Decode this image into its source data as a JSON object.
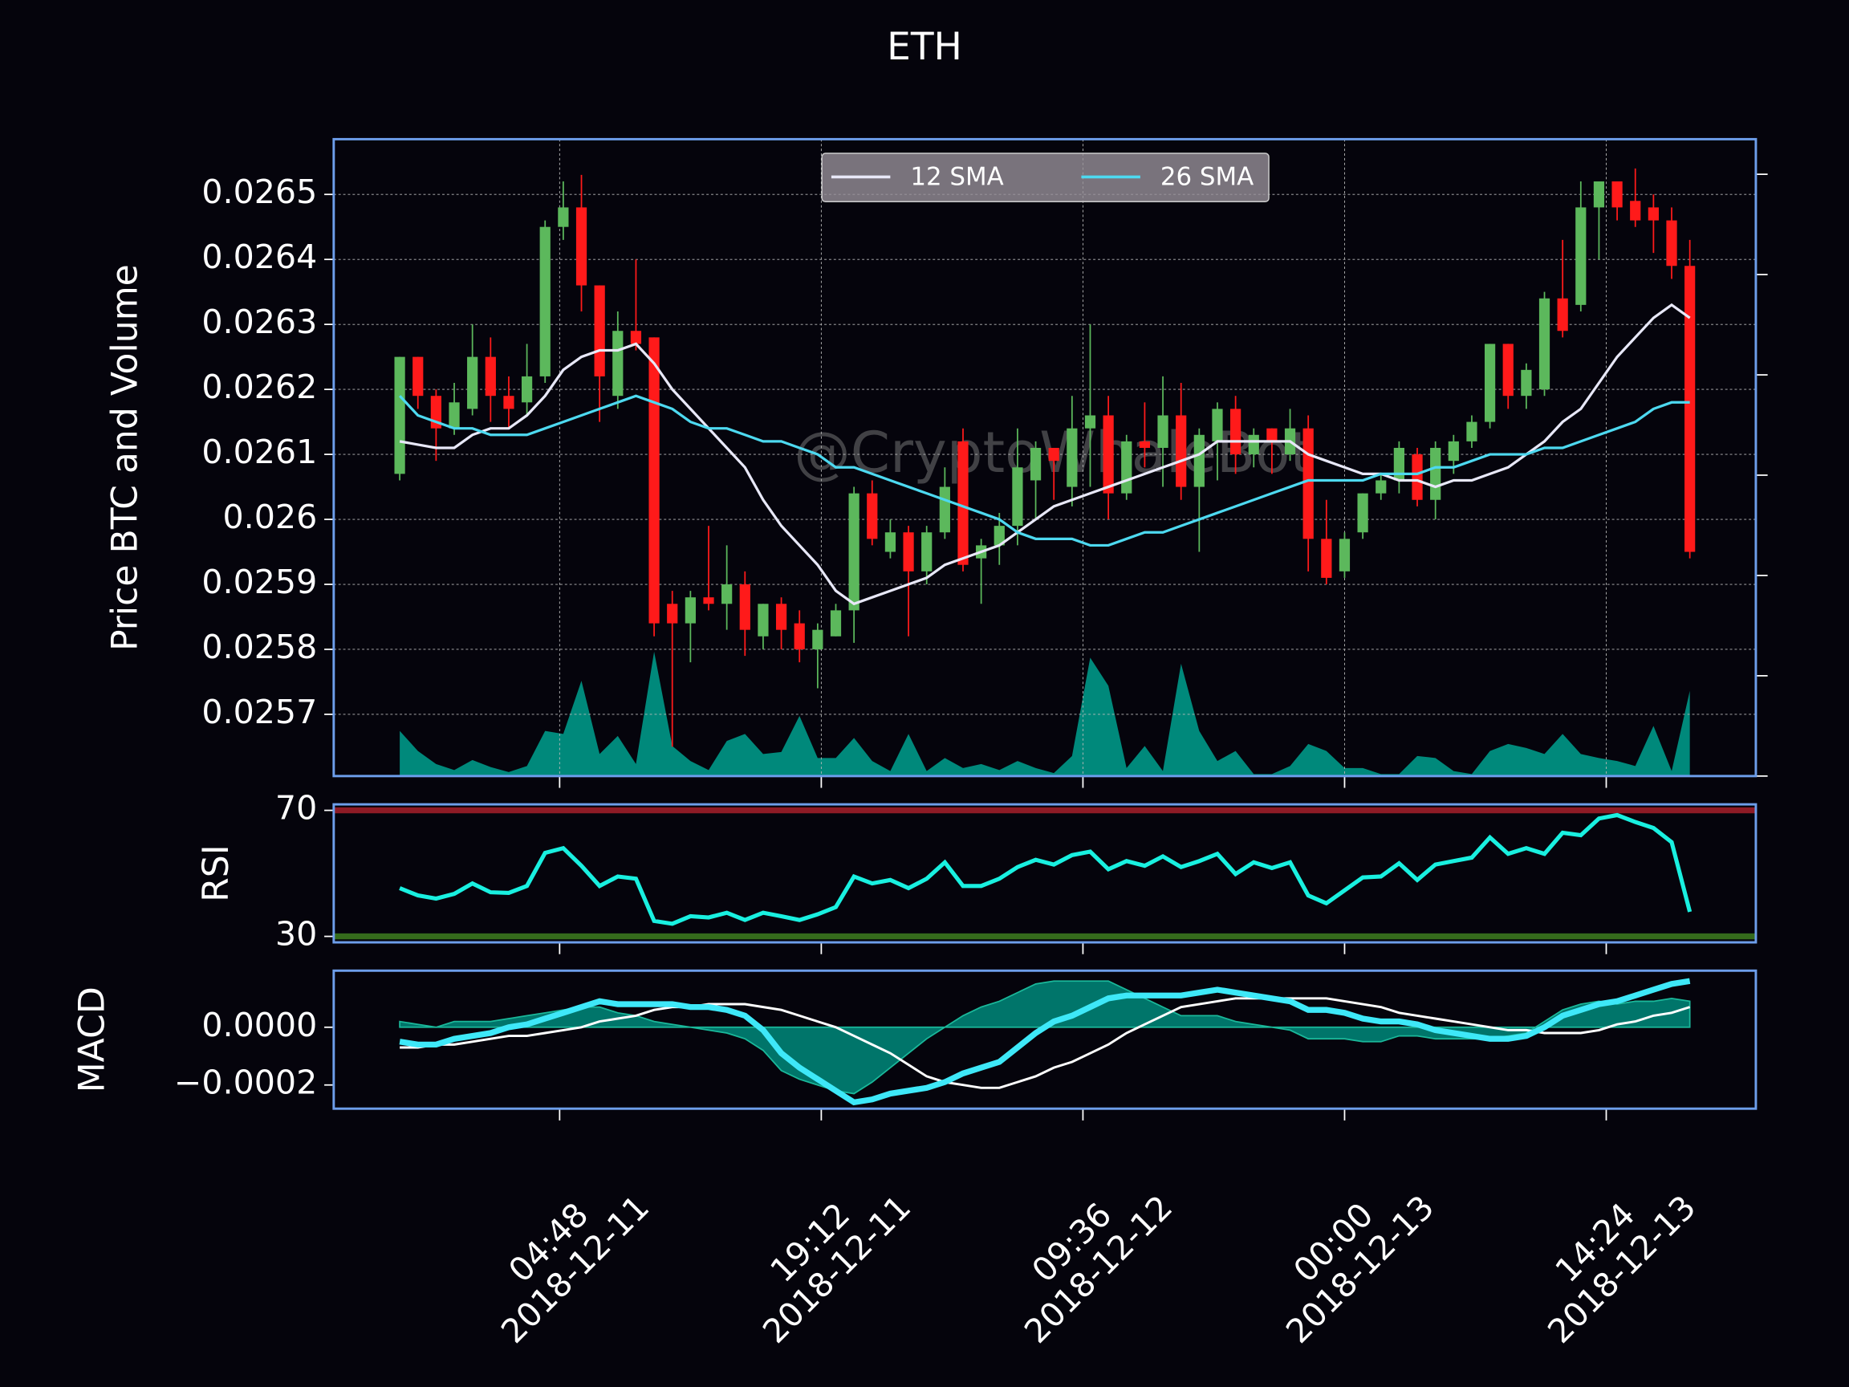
{
  "chart_data": [
    {
      "type": "candlestick",
      "title": "ETH",
      "ylabel": "Price BTC and Volume",
      "watermark": "@CryptoWhaleBot",
      "x": [
        "2018-12-10 20:00",
        "2018-12-10 21:00",
        "2018-12-10 22:00",
        "2018-12-10 23:00",
        "2018-12-11 00:00",
        "2018-12-11 01:00",
        "2018-12-11 02:00",
        "2018-12-11 03:00",
        "2018-12-11 04:00",
        "2018-12-11 05:00",
        "2018-12-11 06:00",
        "2018-12-11 07:00",
        "2018-12-11 08:00",
        "2018-12-11 09:00",
        "2018-12-11 10:00",
        "2018-12-11 11:00",
        "2018-12-11 12:00",
        "2018-12-11 13:00",
        "2018-12-11 14:00",
        "2018-12-11 15:00",
        "2018-12-11 16:00",
        "2018-12-11 17:00",
        "2018-12-11 18:00",
        "2018-12-11 19:00",
        "2018-12-11 20:00",
        "2018-12-11 21:00",
        "2018-12-11 22:00",
        "2018-12-11 23:00",
        "2018-12-12 00:00",
        "2018-12-12 01:00",
        "2018-12-12 02:00",
        "2018-12-12 03:00",
        "2018-12-12 04:00",
        "2018-12-12 05:00",
        "2018-12-12 06:00",
        "2018-12-12 07:00",
        "2018-12-12 08:00",
        "2018-12-12 09:00",
        "2018-12-12 10:00",
        "2018-12-12 11:00",
        "2018-12-12 12:00",
        "2018-12-12 13:00",
        "2018-12-12 14:00",
        "2018-12-12 15:00",
        "2018-12-12 16:00",
        "2018-12-12 17:00",
        "2018-12-12 18:00",
        "2018-12-12 19:00",
        "2018-12-12 20:00",
        "2018-12-12 21:00",
        "2018-12-12 22:00",
        "2018-12-12 23:00",
        "2018-12-13 00:00",
        "2018-12-13 01:00",
        "2018-12-13 02:00",
        "2018-12-13 03:00",
        "2018-12-13 04:00",
        "2018-12-13 05:00",
        "2018-12-13 06:00",
        "2018-12-13 07:00",
        "2018-12-13 08:00",
        "2018-12-13 09:00",
        "2018-12-13 10:00",
        "2018-12-13 11:00",
        "2018-12-13 12:00",
        "2018-12-13 13:00",
        "2018-12-13 14:00",
        "2018-12-13 15:00",
        "2018-12-13 16:00",
        "2018-12-13 17:00",
        "2018-12-13 18:00",
        "2018-12-13 19:00"
      ],
      "open": [
        0.02607,
        0.02625,
        0.02619,
        0.02614,
        0.02617,
        0.02625,
        0.02619,
        0.02618,
        0.02622,
        0.02645,
        0.02648,
        0.02636,
        0.02619,
        0.02629,
        0.02628,
        0.02587,
        0.02584,
        0.02588,
        0.02587,
        0.0259,
        0.02582,
        0.02587,
        0.02584,
        0.0258,
        0.02582,
        0.02586,
        0.02604,
        0.02595,
        0.02598,
        0.02592,
        0.02598,
        0.02612,
        0.02594,
        0.02596,
        0.02599,
        0.02606,
        0.02611,
        0.02605,
        0.02614,
        0.02616,
        0.02604,
        0.02612,
        0.02611,
        0.02616,
        0.02605,
        0.02612,
        0.02617,
        0.0261,
        0.02614,
        0.0261,
        0.02614,
        0.02597,
        0.02592,
        0.02598,
        0.02604,
        0.02606,
        0.0261,
        0.02603,
        0.02609,
        0.02612,
        0.02615,
        0.02627,
        0.02619,
        0.0262,
        0.02634,
        0.02633,
        0.02648,
        0.02652,
        0.02649,
        0.02648,
        0.02646,
        0.02639
      ],
      "high": [
        0.02625,
        0.02625,
        0.0262,
        0.02621,
        0.0263,
        0.02628,
        0.02622,
        0.02627,
        0.02646,
        0.02652,
        0.02653,
        0.02636,
        0.02632,
        0.0264,
        0.02628,
        0.02589,
        0.02589,
        0.02599,
        0.02596,
        0.02592,
        0.02587,
        0.02588,
        0.02586,
        0.02584,
        0.02587,
        0.02605,
        0.02606,
        0.026,
        0.02599,
        0.02599,
        0.02608,
        0.02614,
        0.02597,
        0.02601,
        0.02614,
        0.02612,
        0.02611,
        0.02619,
        0.0263,
        0.02619,
        0.02613,
        0.02618,
        0.02622,
        0.02621,
        0.02614,
        0.02618,
        0.02619,
        0.02614,
        0.02614,
        0.02617,
        0.02616,
        0.02603,
        0.02598,
        0.02604,
        0.02607,
        0.02612,
        0.02611,
        0.02612,
        0.02613,
        0.02616,
        0.02627,
        0.02627,
        0.02624,
        0.02635,
        0.02643,
        0.02652,
        0.02652,
        0.02652,
        0.02654,
        0.0265,
        0.02648,
        0.02643
      ],
      "low": [
        0.02606,
        0.02617,
        0.02609,
        0.02613,
        0.02616,
        0.02615,
        0.02614,
        0.02616,
        0.02621,
        0.02643,
        0.02632,
        0.02615,
        0.02617,
        0.02626,
        0.02582,
        0.02565,
        0.02578,
        0.02586,
        0.02583,
        0.02579,
        0.0258,
        0.0258,
        0.02578,
        0.02574,
        0.02582,
        0.02581,
        0.02596,
        0.02594,
        0.02582,
        0.0259,
        0.02597,
        0.02592,
        0.02587,
        0.02593,
        0.02596,
        0.026,
        0.02603,
        0.02602,
        0.02605,
        0.026,
        0.02603,
        0.02608,
        0.02605,
        0.02603,
        0.02595,
        0.02606,
        0.02607,
        0.02608,
        0.02607,
        0.02609,
        0.02592,
        0.0259,
        0.02591,
        0.02597,
        0.02603,
        0.02604,
        0.02602,
        0.026,
        0.02607,
        0.02611,
        0.02614,
        0.02617,
        0.02617,
        0.02619,
        0.02628,
        0.02632,
        0.0264,
        0.02646,
        0.02645,
        0.02641,
        0.02637,
        0.02594
      ],
      "close": [
        0.02625,
        0.02619,
        0.02614,
        0.02618,
        0.02625,
        0.02619,
        0.02617,
        0.02622,
        0.02645,
        0.02648,
        0.02636,
        0.02622,
        0.02629,
        0.02627,
        0.02584,
        0.02584,
        0.02588,
        0.02587,
        0.0259,
        0.02583,
        0.02587,
        0.02583,
        0.0258,
        0.02583,
        0.02586,
        0.02604,
        0.02597,
        0.02598,
        0.02592,
        0.02598,
        0.02605,
        0.02593,
        0.02596,
        0.02599,
        0.02608,
        0.02611,
        0.02609,
        0.02614,
        0.02616,
        0.02604,
        0.02612,
        0.02611,
        0.02616,
        0.02605,
        0.02613,
        0.02617,
        0.0261,
        0.02613,
        0.02612,
        0.02614,
        0.02597,
        0.02591,
        0.02597,
        0.02604,
        0.02606,
        0.02611,
        0.02603,
        0.02611,
        0.02612,
        0.02615,
        0.02627,
        0.02619,
        0.02623,
        0.02634,
        0.02629,
        0.02648,
        0.02652,
        0.02648,
        0.02646,
        0.02646,
        0.02639,
        0.02595
      ],
      "up_color": "#5cb85c",
      "down_color": "#ff1a1a",
      "series": [
        {
          "name": "12 SMA",
          "color": "#e8e8f8",
          "values": [
            0.02612,
            0.026115,
            0.02611,
            0.02611,
            0.02613,
            0.02614,
            0.02614,
            0.02616,
            0.02619,
            0.02623,
            0.02625,
            0.02626,
            0.02626,
            0.02627,
            0.02624,
            0.0262,
            0.02617,
            0.02614,
            0.02611,
            0.02608,
            0.02603,
            0.02599,
            0.02596,
            0.02593,
            0.02589,
            0.02587,
            0.02588,
            0.02589,
            0.0259,
            0.02591,
            0.02593,
            0.02594,
            0.02595,
            0.02596,
            0.02598,
            0.026,
            0.02602,
            0.02603,
            0.02604,
            0.02605,
            0.02606,
            0.02607,
            0.02608,
            0.02609,
            0.0261,
            0.02612,
            0.02612,
            0.02612,
            0.02612,
            0.02612,
            0.0261,
            0.02609,
            0.02608,
            0.02607,
            0.02607,
            0.02606,
            0.02606,
            0.02605,
            0.02606,
            0.02606,
            0.02607,
            0.02608,
            0.0261,
            0.02612,
            0.02615,
            0.02617,
            0.02621,
            0.02625,
            0.02628,
            0.02631,
            0.02633,
            0.02631
          ]
        },
        {
          "name": "26 SMA",
          "color": "#4dd9f0",
          "values": [
            0.02619,
            0.02616,
            0.02615,
            0.02614,
            0.02614,
            0.02613,
            0.02613,
            0.02613,
            0.02614,
            0.02615,
            0.02616,
            0.02617,
            0.02618,
            0.02619,
            0.02618,
            0.02617,
            0.02615,
            0.02614,
            0.02614,
            0.02613,
            0.02612,
            0.02612,
            0.02611,
            0.0261,
            0.02608,
            0.02608,
            0.02607,
            0.02606,
            0.02605,
            0.02604,
            0.02603,
            0.02602,
            0.02601,
            0.026,
            0.02598,
            0.02597,
            0.02597,
            0.02597,
            0.02596,
            0.02596,
            0.02597,
            0.02598,
            0.02598,
            0.02599,
            0.026,
            0.02601,
            0.02602,
            0.02603,
            0.02604,
            0.02605,
            0.02606,
            0.02606,
            0.02606,
            0.02606,
            0.02607,
            0.02607,
            0.02607,
            0.02608,
            0.02608,
            0.02609,
            0.0261,
            0.0261,
            0.0261,
            0.02611,
            0.02611,
            0.02612,
            0.02613,
            0.02614,
            0.02615,
            0.02617,
            0.02618,
            0.02618
          ]
        }
      ],
      "volume": {
        "axis": "y2",
        "color": "#00897b",
        "values": [
          0.45,
          0.25,
          0.12,
          0.06,
          0.16,
          0.09,
          0.04,
          0.1,
          0.45,
          0.42,
          0.95,
          0.22,
          0.4,
          0.12,
          1.24,
          0.3,
          0.15,
          0.06,
          0.35,
          0.42,
          0.22,
          0.24,
          0.6,
          0.18,
          0.18,
          0.38,
          0.15,
          0.05,
          0.42,
          0.05,
          0.18,
          0.08,
          0.12,
          0.06,
          0.15,
          0.08,
          0.03,
          0.2,
          1.18,
          0.9,
          0.08,
          0.3,
          0.05,
          1.12,
          0.45,
          0.15,
          0.25,
          0.02,
          0.02,
          0.1,
          0.32,
          0.25,
          0.08,
          0.08,
          0.02,
          0.02,
          0.2,
          0.18,
          0.05,
          0.02,
          0.25,
          0.32,
          0.28,
          0.22,
          0.42,
          0.22,
          0.18,
          0.15,
          0.1,
          0.5,
          0.05,
          0.85
        ]
      },
      "xlim": [
        "2018-12-10 16:22",
        "2018-12-13 22:38"
      ],
      "xticks": [
        {
          "value": "2018-12-11 04:48",
          "label": [
            "04:48",
            "2018-12-11"
          ]
        },
        {
          "value": "2018-12-11 19:12",
          "label": [
            "19:12",
            "2018-12-11"
          ]
        },
        {
          "value": "2018-12-12 09:36",
          "label": [
            "09:36",
            "2018-12-12"
          ]
        },
        {
          "value": "2018-12-13 00:00",
          "label": [
            "00:00",
            "2018-12-13"
          ]
        },
        {
          "value": "2018-12-13 14:24",
          "label": [
            "14:24",
            "2018-12-13"
          ]
        }
      ],
      "ylim": [
        0.025605,
        0.026585
      ],
      "yticks": [
        0.0257,
        0.0258,
        0.0259,
        0.026,
        0.0261,
        0.0262,
        0.0263,
        0.0264,
        0.0265
      ],
      "y2lim": [
        0,
        6.35
      ],
      "y2ticks": [
        0,
        1,
        2,
        3,
        4,
        5,
        6
      ],
      "grid": true,
      "legend": "upper center"
    },
    {
      "type": "line",
      "ylabel": "RSI",
      "color": "#19f0e0",
      "values": [
        45.3,
        43,
        42,
        43.5,
        46.8,
        44,
        43.8,
        46,
        56.5,
        58,
        52.4,
        46,
        49,
        48.3,
        34.9,
        34,
        36.4,
        36,
        37.5,
        35.2,
        37.5,
        36.4,
        35.2,
        37,
        39.3,
        49,
        46.8,
        47.9,
        45.3,
        48.3,
        53.5,
        46,
        46,
        48.3,
        52,
        54.3,
        52.8,
        55.8,
        56.9,
        51.3,
        53.9,
        52.4,
        55.4,
        52,
        53.9,
        56.2,
        49.8,
        53.5,
        51.7,
        53.5,
        43,
        40.5,
        44.6,
        48.7,
        49,
        53.2,
        47.9,
        52.8,
        53.9,
        55,
        61.4,
        56.2,
        58,
        56.2,
        62.9,
        62.1,
        67.4,
        68.5,
        66.3,
        64.4,
        59.9,
        37.8
      ],
      "ylim": [
        28.1,
        71.9
      ],
      "yticks": [
        30,
        70
      ],
      "ytick_line_colors": [
        "#356b1c",
        "#8e1b26"
      ]
    },
    {
      "type": "macd",
      "ylabel": "MACD",
      "macd": {
        "color": "#3ee8f8",
        "values": [
          -5e-05,
          -6e-05,
          -6e-05,
          -4e-05,
          -3e-05,
          -2e-05,
          0,
          1e-05,
          3e-05,
          5e-05,
          7e-05,
          9e-05,
          8e-05,
          8e-05,
          8e-05,
          8e-05,
          7e-05,
          7e-05,
          6e-05,
          4e-05,
          -1e-05,
          -9e-05,
          -0.00014,
          -0.00018,
          -0.00022,
          -0.00026,
          -0.00025,
          -0.00023,
          -0.00022,
          -0.00021,
          -0.00019,
          -0.00016,
          -0.00014,
          -0.00012,
          -7e-05,
          -2e-05,
          2e-05,
          4e-05,
          7e-05,
          0.0001,
          0.00011,
          0.00011,
          0.00011,
          0.00011,
          0.00012,
          0.00013,
          0.00012,
          0.00011,
          0.0001,
          9e-05,
          6e-05,
          6e-05,
          5e-05,
          3e-05,
          2e-05,
          2e-05,
          1e-05,
          -1e-05,
          -2e-05,
          -3e-05,
          -4e-05,
          -4e-05,
          -3e-05,
          0,
          4e-05,
          6e-05,
          8e-05,
          9e-05,
          0.00011,
          0.00013,
          0.00015,
          0.00016
        ]
      },
      "signal": {
        "color": "#ffffff",
        "values": [
          -7e-05,
          -7e-05,
          -6e-05,
          -6e-05,
          -5e-05,
          -4e-05,
          -3e-05,
          -3e-05,
          -2e-05,
          -1e-05,
          0,
          2e-05,
          3e-05,
          4e-05,
          6e-05,
          7e-05,
          7e-05,
          8e-05,
          8e-05,
          8e-05,
          7e-05,
          6e-05,
          4e-05,
          2e-05,
          0,
          -3e-05,
          -6e-05,
          -9e-05,
          -0.00013,
          -0.00017,
          -0.00019,
          -0.0002,
          -0.00021,
          -0.00021,
          -0.00019,
          -0.00017,
          -0.00014,
          -0.00012,
          -9e-05,
          -6e-05,
          -2e-05,
          1e-05,
          4e-05,
          7e-05,
          8e-05,
          9e-05,
          0.0001,
          0.0001,
          0.0001,
          0.0001,
          0.0001,
          0.0001,
          9e-05,
          8e-05,
          7e-05,
          5e-05,
          4e-05,
          3e-05,
          2e-05,
          1e-05,
          0,
          -1e-05,
          -1e-05,
          -2e-05,
          -2e-05,
          -2e-05,
          -1e-05,
          1e-05,
          2e-05,
          4e-05,
          5e-05,
          7e-05
        ]
      },
      "histogram": {
        "color": "#00897b",
        "values": [
          2e-05,
          1e-05,
          0,
          2e-05,
          2e-05,
          2e-05,
          3e-05,
          4e-05,
          5e-05,
          6e-05,
          7e-05,
          7e-05,
          5e-05,
          4e-05,
          2e-05,
          1e-05,
          0,
          -1e-05,
          -2e-05,
          -4e-05,
          -8e-05,
          -0.00015,
          -0.00018,
          -0.0002,
          -0.00022,
          -0.00023,
          -0.00019,
          -0.00014,
          -9e-05,
          -4e-05,
          0,
          4e-05,
          7e-05,
          9e-05,
          0.00012,
          0.00015,
          0.00016,
          0.00016,
          0.00016,
          0.00016,
          0.00013,
          0.0001,
          7e-05,
          4e-05,
          4e-05,
          4e-05,
          2e-05,
          1e-05,
          0,
          -1e-05,
          -4e-05,
          -4e-05,
          -4e-05,
          -5e-05,
          -5e-05,
          -3e-05,
          -3e-05,
          -4e-05,
          -4e-05,
          -4e-05,
          -4e-05,
          -3e-05,
          -2e-05,
          2e-05,
          6e-05,
          8e-05,
          9e-05,
          8e-05,
          9e-05,
          9e-05,
          0.0001,
          9e-05
        ]
      },
      "ylim": [
        -0.000282,
        0.000196
      ],
      "yticks": [
        {
          "value": -0.0002,
          "label": "−0.0002"
        },
        {
          "value": 0,
          "label": "0.0000"
        }
      ]
    }
  ]
}
